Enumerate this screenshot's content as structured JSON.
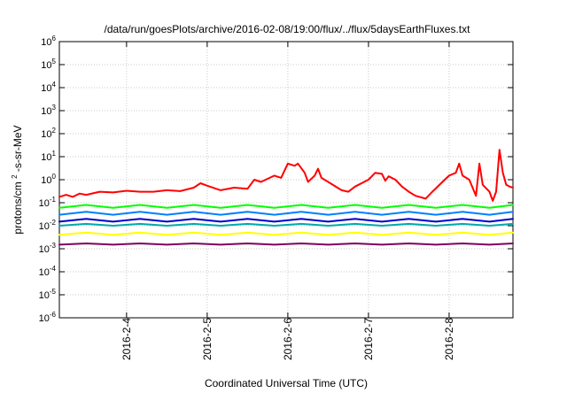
{
  "chart_data": {
    "type": "line",
    "title": "/data/run/goesPlots/archive/2016-02-08/19:00/flux/../flux/5daysEarthFluxes.txt",
    "xlabel": "Coordinated Universal Time (UTC)",
    "ylabel": "protons/cm²-s-sr-MeV",
    "ylabel_parts": {
      "base": "protons/cm",
      "sup": "2",
      "tail": "-s-sr-MeV"
    },
    "y_scale": "log",
    "ylim": [
      1e-06,
      1000000.0
    ],
    "y_ticks": [
      {
        "value": 1e-06,
        "base": "10",
        "exp": "-6"
      },
      {
        "value": 1e-05,
        "base": "10",
        "exp": "-5"
      },
      {
        "value": 0.0001,
        "base": "10",
        "exp": "-4"
      },
      {
        "value": 0.001,
        "base": "10",
        "exp": "-3"
      },
      {
        "value": 0.01,
        "base": "10",
        "exp": "-2"
      },
      {
        "value": 0.1,
        "base": "10",
        "exp": "-1"
      },
      {
        "value": 1,
        "base": "10",
        "exp": "0"
      },
      {
        "value": 10,
        "base": "10",
        "exp": "1"
      },
      {
        "value": 100,
        "base": "10",
        "exp": "2"
      },
      {
        "value": 1000,
        "base": "10",
        "exp": "3"
      },
      {
        "value": 10000,
        "base": "10",
        "exp": "4"
      },
      {
        "value": 100000,
        "base": "10",
        "exp": "5"
      },
      {
        "value": 1000000,
        "base": "10",
        "exp": "6"
      }
    ],
    "xlim": [
      "2016-02-03T04:00",
      "2016-02-08T19:00"
    ],
    "x_ticks": [
      {
        "value": "2016-02-04T00:00",
        "label": "2016-2-4"
      },
      {
        "value": "2016-02-05T00:00",
        "label": "2016-2-5"
      },
      {
        "value": "2016-02-06T00:00",
        "label": "2016-2-6"
      },
      {
        "value": "2016-02-07T00:00",
        "label": "2016-2-7"
      },
      {
        "value": "2016-02-08T00:00",
        "label": "2016-2-8"
      }
    ],
    "grid": true,
    "legend": "none",
    "series": [
      {
        "color": "#ff0000",
        "points": [
          [
            "2016-02-03T04:00",
            0.18
          ],
          [
            "2016-02-03T06:00",
            0.22
          ],
          [
            "2016-02-03T08:00",
            0.18
          ],
          [
            "2016-02-03T10:00",
            0.25
          ],
          [
            "2016-02-03T12:00",
            0.22
          ],
          [
            "2016-02-03T16:00",
            0.3
          ],
          [
            "2016-02-03T20:00",
            0.28
          ],
          [
            "2016-02-04T00:00",
            0.33
          ],
          [
            "2016-02-04T04:00",
            0.3
          ],
          [
            "2016-02-04T08:00",
            0.3
          ],
          [
            "2016-02-04T12:00",
            0.35
          ],
          [
            "2016-02-04T16:00",
            0.32
          ],
          [
            "2016-02-04T20:00",
            0.45
          ],
          [
            "2016-02-04T22:00",
            0.7
          ],
          [
            "2016-02-05T00:00",
            0.55
          ],
          [
            "2016-02-05T04:00",
            0.35
          ],
          [
            "2016-02-05T08:00",
            0.45
          ],
          [
            "2016-02-05T12:00",
            0.4
          ],
          [
            "2016-02-05T14:00",
            1.0
          ],
          [
            "2016-02-05T16:00",
            0.8
          ],
          [
            "2016-02-05T20:00",
            1.5
          ],
          [
            "2016-02-05T22:00",
            1.2
          ],
          [
            "2016-02-06T00:00",
            5.0
          ],
          [
            "2016-02-06T02:00",
            4.0
          ],
          [
            "2016-02-06T03:00",
            5.0
          ],
          [
            "2016-02-06T05:00",
            2.0
          ],
          [
            "2016-02-06T06:00",
            0.8
          ],
          [
            "2016-02-06T08:00",
            1.5
          ],
          [
            "2016-02-06T09:00",
            3.0
          ],
          [
            "2016-02-06T10:00",
            1.2
          ],
          [
            "2016-02-06T12:00",
            0.8
          ],
          [
            "2016-02-06T16:00",
            0.35
          ],
          [
            "2016-02-06T18:00",
            0.3
          ],
          [
            "2016-02-06T20:00",
            0.5
          ],
          [
            "2016-02-07T00:00",
            1.0
          ],
          [
            "2016-02-07T02:00",
            2.0
          ],
          [
            "2016-02-07T04:00",
            1.8
          ],
          [
            "2016-02-07T05:00",
            0.9
          ],
          [
            "2016-02-07T06:00",
            1.4
          ],
          [
            "2016-02-07T08:00",
            1.0
          ],
          [
            "2016-02-07T10:00",
            0.5
          ],
          [
            "2016-02-07T12:00",
            0.3
          ],
          [
            "2016-02-07T14:00",
            0.2
          ],
          [
            "2016-02-07T17:00",
            0.15
          ],
          [
            "2016-02-07T19:00",
            0.3
          ],
          [
            "2016-02-07T22:00",
            0.8
          ],
          [
            "2016-02-08T00:00",
            1.5
          ],
          [
            "2016-02-08T02:00",
            2.0
          ],
          [
            "2016-02-08T03:00",
            5.0
          ],
          [
            "2016-02-08T04:00",
            1.5
          ],
          [
            "2016-02-08T06:00",
            1.0
          ],
          [
            "2016-02-08T08:00",
            0.2
          ],
          [
            "2016-02-08T09:00",
            5.0
          ],
          [
            "2016-02-08T10:00",
            0.6
          ],
          [
            "2016-02-08T12:00",
            0.3
          ],
          [
            "2016-02-08T13:00",
            0.12
          ],
          [
            "2016-02-08T14:00",
            0.3
          ],
          [
            "2016-02-08T15:00",
            20.0
          ],
          [
            "2016-02-08T16:00",
            2.0
          ],
          [
            "2016-02-08T17:00",
            0.6
          ],
          [
            "2016-02-08T18:00",
            0.5
          ],
          [
            "2016-02-08T19:00",
            0.45
          ]
        ]
      },
      {
        "color": "#00ff00",
        "points": [
          [
            "2016-02-03T04:00",
            0.06
          ],
          [
            "2016-02-03T12:00",
            0.08
          ],
          [
            "2016-02-03T20:00",
            0.06
          ],
          [
            "2016-02-04T04:00",
            0.08
          ],
          [
            "2016-02-04T12:00",
            0.06
          ],
          [
            "2016-02-04T20:00",
            0.08
          ],
          [
            "2016-02-05T04:00",
            0.06
          ],
          [
            "2016-02-05T12:00",
            0.08
          ],
          [
            "2016-02-05T20:00",
            0.06
          ],
          [
            "2016-02-06T04:00",
            0.08
          ],
          [
            "2016-02-06T12:00",
            0.06
          ],
          [
            "2016-02-06T20:00",
            0.08
          ],
          [
            "2016-02-07T04:00",
            0.06
          ],
          [
            "2016-02-07T12:00",
            0.08
          ],
          [
            "2016-02-07T20:00",
            0.06
          ],
          [
            "2016-02-08T04:00",
            0.08
          ],
          [
            "2016-02-08T12:00",
            0.06
          ],
          [
            "2016-02-08T19:00",
            0.08
          ]
        ]
      },
      {
        "color": "#0080ff",
        "points": [
          [
            "2016-02-03T04:00",
            0.03
          ],
          [
            "2016-02-03T12:00",
            0.04
          ],
          [
            "2016-02-03T20:00",
            0.03
          ],
          [
            "2016-02-04T04:00",
            0.04
          ],
          [
            "2016-02-04T12:00",
            0.03
          ],
          [
            "2016-02-04T20:00",
            0.04
          ],
          [
            "2016-02-05T04:00",
            0.03
          ],
          [
            "2016-02-05T12:00",
            0.04
          ],
          [
            "2016-02-05T20:00",
            0.03
          ],
          [
            "2016-02-06T04:00",
            0.04
          ],
          [
            "2016-02-06T12:00",
            0.03
          ],
          [
            "2016-02-06T20:00",
            0.04
          ],
          [
            "2016-02-07T04:00",
            0.03
          ],
          [
            "2016-02-07T12:00",
            0.04
          ],
          [
            "2016-02-07T20:00",
            0.03
          ],
          [
            "2016-02-08T04:00",
            0.04
          ],
          [
            "2016-02-08T12:00",
            0.03
          ],
          [
            "2016-02-08T19:00",
            0.04
          ]
        ]
      },
      {
        "color": "#0000cc",
        "points": [
          [
            "2016-02-03T04:00",
            0.015
          ],
          [
            "2016-02-03T12:00",
            0.02
          ],
          [
            "2016-02-03T20:00",
            0.015
          ],
          [
            "2016-02-04T04:00",
            0.02
          ],
          [
            "2016-02-04T12:00",
            0.015
          ],
          [
            "2016-02-04T20:00",
            0.02
          ],
          [
            "2016-02-05T04:00",
            0.015
          ],
          [
            "2016-02-05T12:00",
            0.02
          ],
          [
            "2016-02-05T20:00",
            0.015
          ],
          [
            "2016-02-06T04:00",
            0.02
          ],
          [
            "2016-02-06T12:00",
            0.015
          ],
          [
            "2016-02-06T20:00",
            0.02
          ],
          [
            "2016-02-07T04:00",
            0.015
          ],
          [
            "2016-02-07T12:00",
            0.02
          ],
          [
            "2016-02-07T20:00",
            0.015
          ],
          [
            "2016-02-08T04:00",
            0.02
          ],
          [
            "2016-02-08T12:00",
            0.015
          ],
          [
            "2016-02-08T19:00",
            0.02
          ]
        ]
      },
      {
        "color": "#00aaaa",
        "points": [
          [
            "2016-02-03T04:00",
            0.01
          ],
          [
            "2016-02-03T12:00",
            0.012
          ],
          [
            "2016-02-03T20:00",
            0.01
          ],
          [
            "2016-02-04T04:00",
            0.012
          ],
          [
            "2016-02-04T12:00",
            0.01
          ],
          [
            "2016-02-04T20:00",
            0.012
          ],
          [
            "2016-02-05T04:00",
            0.01
          ],
          [
            "2016-02-05T12:00",
            0.012
          ],
          [
            "2016-02-05T20:00",
            0.01
          ],
          [
            "2016-02-06T04:00",
            0.012
          ],
          [
            "2016-02-06T12:00",
            0.01
          ],
          [
            "2016-02-06T20:00",
            0.012
          ],
          [
            "2016-02-07T04:00",
            0.01
          ],
          [
            "2016-02-07T12:00",
            0.012
          ],
          [
            "2016-02-07T20:00",
            0.01
          ],
          [
            "2016-02-08T04:00",
            0.012
          ],
          [
            "2016-02-08T12:00",
            0.01
          ],
          [
            "2016-02-08T19:00",
            0.012
          ]
        ]
      },
      {
        "color": "#ffff00",
        "points": [
          [
            "2016-02-03T04:00",
            0.004
          ],
          [
            "2016-02-03T12:00",
            0.005
          ],
          [
            "2016-02-03T20:00",
            0.004
          ],
          [
            "2016-02-04T04:00",
            0.005
          ],
          [
            "2016-02-04T12:00",
            0.004
          ],
          [
            "2016-02-04T20:00",
            0.005
          ],
          [
            "2016-02-05T04:00",
            0.004
          ],
          [
            "2016-02-05T12:00",
            0.005
          ],
          [
            "2016-02-05T20:00",
            0.004
          ],
          [
            "2016-02-06T04:00",
            0.005
          ],
          [
            "2016-02-06T12:00",
            0.004
          ],
          [
            "2016-02-06T20:00",
            0.005
          ],
          [
            "2016-02-07T04:00",
            0.004
          ],
          [
            "2016-02-07T12:00",
            0.005
          ],
          [
            "2016-02-07T20:00",
            0.004
          ],
          [
            "2016-02-08T04:00",
            0.005
          ],
          [
            "2016-02-08T12:00",
            0.004
          ],
          [
            "2016-02-08T19:00",
            0.005
          ]
        ]
      },
      {
        "color": "#800060",
        "points": [
          [
            "2016-02-03T04:00",
            0.0015
          ],
          [
            "2016-02-03T12:00",
            0.0017
          ],
          [
            "2016-02-03T20:00",
            0.0015
          ],
          [
            "2016-02-04T04:00",
            0.0017
          ],
          [
            "2016-02-04T12:00",
            0.0015
          ],
          [
            "2016-02-04T20:00",
            0.0017
          ],
          [
            "2016-02-05T04:00",
            0.0015
          ],
          [
            "2016-02-05T12:00",
            0.0017
          ],
          [
            "2016-02-05T20:00",
            0.0015
          ],
          [
            "2016-02-06T04:00",
            0.0017
          ],
          [
            "2016-02-06T12:00",
            0.0015
          ],
          [
            "2016-02-06T20:00",
            0.0017
          ],
          [
            "2016-02-07T04:00",
            0.0015
          ],
          [
            "2016-02-07T12:00",
            0.0017
          ],
          [
            "2016-02-07T20:00",
            0.0015
          ],
          [
            "2016-02-08T04:00",
            0.0017
          ],
          [
            "2016-02-08T12:00",
            0.0015
          ],
          [
            "2016-02-08T19:00",
            0.0017
          ]
        ]
      }
    ]
  }
}
